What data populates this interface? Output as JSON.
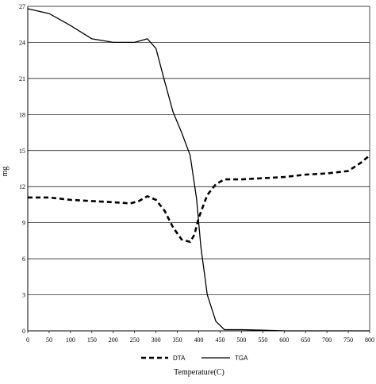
{
  "chart_data": {
    "type": "line",
    "title": "",
    "xlabel": "Temperature(C)",
    "ylabel": "mg",
    "xlim": [
      0,
      800
    ],
    "ylim": [
      0,
      27
    ],
    "x_ticks": [
      0,
      50,
      100,
      150,
      200,
      250,
      300,
      350,
      400,
      450,
      500,
      550,
      600,
      650,
      700,
      750,
      800
    ],
    "y_ticks": [
      0,
      3,
      6,
      9,
      12,
      15,
      18,
      21,
      24,
      27
    ],
    "grid": "horizontal",
    "legend_position": "bottom",
    "series": [
      {
        "name": "DTA",
        "style": "dashed",
        "color": "#000000",
        "points": [
          [
            0,
            11.1
          ],
          [
            50,
            11.1
          ],
          [
            100,
            10.9
          ],
          [
            150,
            10.8
          ],
          [
            200,
            10.7
          ],
          [
            240,
            10.6
          ],
          [
            260,
            10.8
          ],
          [
            280,
            11.2
          ],
          [
            300,
            10.9
          ],
          [
            320,
            10.0
          ],
          [
            340,
            8.6
          ],
          [
            360,
            7.6
          ],
          [
            380,
            7.4
          ],
          [
            390,
            8.0
          ],
          [
            400,
            9.4
          ],
          [
            420,
            11.3
          ],
          [
            440,
            12.2
          ],
          [
            460,
            12.6
          ],
          [
            500,
            12.6
          ],
          [
            550,
            12.7
          ],
          [
            600,
            12.8
          ],
          [
            650,
            13.0
          ],
          [
            700,
            13.1
          ],
          [
            750,
            13.3
          ],
          [
            780,
            14.0
          ],
          [
            800,
            14.6
          ]
        ]
      },
      {
        "name": "TGA",
        "style": "solid",
        "color": "#000000",
        "points": [
          [
            0,
            26.8
          ],
          [
            50,
            26.4
          ],
          [
            100,
            25.4
          ],
          [
            150,
            24.3
          ],
          [
            200,
            24.0
          ],
          [
            250,
            24.0
          ],
          [
            280,
            24.3
          ],
          [
            300,
            23.5
          ],
          [
            320,
            20.8
          ],
          [
            340,
            18.2
          ],
          [
            360,
            16.5
          ],
          [
            380,
            14.6
          ],
          [
            395,
            11.0
          ],
          [
            405,
            7.0
          ],
          [
            420,
            3.0
          ],
          [
            440,
            0.8
          ],
          [
            460,
            0.1
          ],
          [
            500,
            0.1
          ],
          [
            550,
            0.05
          ],
          [
            600,
            0.0
          ],
          [
            700,
            0.0
          ],
          [
            800,
            0.0
          ]
        ]
      }
    ]
  }
}
